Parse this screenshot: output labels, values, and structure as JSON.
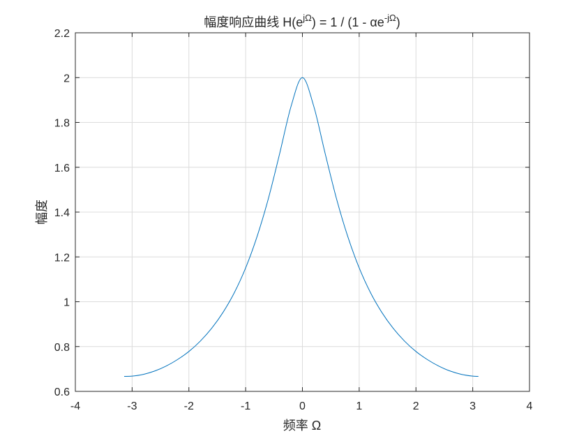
{
  "chart_data": {
    "type": "line",
    "title": {
      "prefix": "幅度响应曲线 H(e",
      "sup1": "jΩ",
      "middle": ") = 1 / (1 - αe",
      "sup2": "-jΩ",
      "suffix": ")"
    },
    "xlabel": "频率 Ω",
    "ylabel": "幅度",
    "xlim": [
      -4,
      4
    ],
    "ylim": [
      0.6,
      2.2
    ],
    "xticks": [
      -4,
      -3,
      -2,
      -1,
      0,
      1,
      2,
      3,
      4
    ],
    "xtick_labels": [
      "-4",
      "-3",
      "-2",
      "-1",
      "0",
      "1",
      "2",
      "3",
      "4"
    ],
    "yticks": [
      0.6,
      0.8,
      1.0,
      1.2,
      1.4,
      1.6,
      1.8,
      2.0,
      2.2
    ],
    "ytick_labels": [
      "0.6",
      "0.8",
      "1",
      "1.2",
      "1.4",
      "1.6",
      "1.8",
      "2",
      "2.2"
    ],
    "grid": true,
    "line_color": "#0072bd",
    "series": [
      {
        "x": [
          -3.14,
          -3.0,
          -2.8,
          -2.6,
          -2.4,
          -2.2,
          -2.0,
          -1.8,
          -1.6,
          -1.4,
          -1.2,
          -1.0,
          -0.8,
          -0.6,
          -0.4,
          -0.2,
          0.0,
          0.2,
          0.4,
          0.6,
          0.8,
          1.0,
          1.2,
          1.4,
          1.6,
          1.8,
          2.0,
          2.2,
          2.4,
          2.6,
          2.8,
          3.0,
          3.1
        ],
        "y": [
          0.667,
          0.668,
          0.676,
          0.691,
          0.713,
          0.742,
          0.778,
          0.824,
          0.881,
          0.952,
          1.04,
          1.151,
          1.29,
          1.46,
          1.662,
          1.872,
          2.0,
          1.872,
          1.662,
          1.46,
          1.29,
          1.151,
          1.04,
          0.952,
          0.881,
          0.824,
          0.778,
          0.742,
          0.713,
          0.691,
          0.676,
          0.668,
          0.667
        ]
      }
    ]
  }
}
